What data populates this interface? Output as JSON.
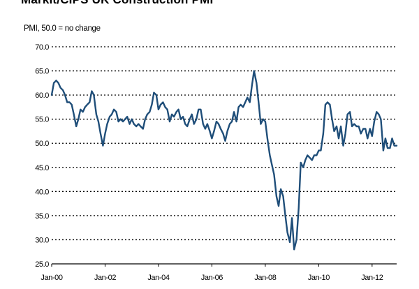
{
  "chart_data": {
    "type": "line",
    "title": "Markit/CIPS UK Construction PMI",
    "ylabel": "PMI, 50.0 = no change",
    "ylim": [
      25,
      70
    ],
    "y_ticks": [
      "25.0",
      "30.0",
      "35.0",
      "40.0",
      "45.0",
      "50.0",
      "55.0",
      "60.0",
      "65.0",
      "70.0"
    ],
    "x_ticks": [
      "Jan-00",
      "Jan-02",
      "Jan-04",
      "Jan-06",
      "Jan-08",
      "Jan-10",
      "Jan-12"
    ],
    "grid": true,
    "line_color": "#1f4e79",
    "series": [
      {
        "values": [
          [
            2000.0,
            60.0
          ],
          [
            2000.08,
            62.5
          ],
          [
            2000.17,
            63.0
          ],
          [
            2000.25,
            62.5
          ],
          [
            2000.33,
            61.5
          ],
          [
            2000.42,
            61.0
          ],
          [
            2000.5,
            60.0
          ],
          [
            2000.58,
            58.5
          ],
          [
            2000.67,
            58.5
          ],
          [
            2000.75,
            58.0
          ],
          [
            2000.83,
            56.0
          ],
          [
            2000.92,
            53.5
          ],
          [
            2001.0,
            55.0
          ],
          [
            2001.08,
            57.0
          ],
          [
            2001.17,
            56.5
          ],
          [
            2001.25,
            57.5
          ],
          [
            2001.33,
            58.0
          ],
          [
            2001.42,
            58.5
          ],
          [
            2001.5,
            60.8
          ],
          [
            2001.58,
            60.0
          ],
          [
            2001.67,
            56.0
          ],
          [
            2001.75,
            54.5
          ],
          [
            2001.83,
            52.0
          ],
          [
            2001.92,
            49.5
          ],
          [
            2002.0,
            52.0
          ],
          [
            2002.08,
            54.0
          ],
          [
            2002.17,
            55.5
          ],
          [
            2002.25,
            56.0
          ],
          [
            2002.33,
            57.0
          ],
          [
            2002.42,
            56.5
          ],
          [
            2002.5,
            54.5
          ],
          [
            2002.58,
            55.0
          ],
          [
            2002.67,
            54.5
          ],
          [
            2002.75,
            55.0
          ],
          [
            2002.83,
            55.5
          ],
          [
            2002.92,
            54.0
          ],
          [
            2003.0,
            55.0
          ],
          [
            2003.08,
            54.0
          ],
          [
            2003.17,
            53.5
          ],
          [
            2003.25,
            54.0
          ],
          [
            2003.33,
            53.5
          ],
          [
            2003.42,
            53.0
          ],
          [
            2003.5,
            55.0
          ],
          [
            2003.58,
            56.0
          ],
          [
            2003.67,
            56.5
          ],
          [
            2003.75,
            58.0
          ],
          [
            2003.83,
            60.5
          ],
          [
            2003.92,
            60.0
          ],
          [
            2004.0,
            57.0
          ],
          [
            2004.08,
            58.0
          ],
          [
            2004.17,
            58.5
          ],
          [
            2004.25,
            57.5
          ],
          [
            2004.33,
            57.0
          ],
          [
            2004.42,
            54.5
          ],
          [
            2004.5,
            56.0
          ],
          [
            2004.58,
            55.5
          ],
          [
            2004.67,
            56.5
          ],
          [
            2004.75,
            57.0
          ],
          [
            2004.83,
            55.0
          ],
          [
            2004.92,
            55.5
          ],
          [
            2005.0,
            54.0
          ],
          [
            2005.08,
            53.5
          ],
          [
            2005.17,
            55.0
          ],
          [
            2005.25,
            56.0
          ],
          [
            2005.33,
            54.0
          ],
          [
            2005.42,
            55.0
          ],
          [
            2005.5,
            57.0
          ],
          [
            2005.58,
            57.0
          ],
          [
            2005.67,
            54.0
          ],
          [
            2005.75,
            53.0
          ],
          [
            2005.83,
            54.0
          ],
          [
            2005.92,
            52.5
          ],
          [
            2006.0,
            51.0
          ],
          [
            2006.08,
            52.5
          ],
          [
            2006.17,
            54.5
          ],
          [
            2006.25,
            54.0
          ],
          [
            2006.33,
            53.0
          ],
          [
            2006.42,
            52.0
          ],
          [
            2006.5,
            50.5
          ],
          [
            2006.58,
            52.5
          ],
          [
            2006.67,
            54.0
          ],
          [
            2006.75,
            54.5
          ],
          [
            2006.83,
            56.5
          ],
          [
            2006.92,
            54.5
          ],
          [
            2007.0,
            57.5
          ],
          [
            2007.08,
            58.0
          ],
          [
            2007.17,
            57.5
          ],
          [
            2007.25,
            58.5
          ],
          [
            2007.33,
            59.5
          ],
          [
            2007.42,
            58.5
          ],
          [
            2007.5,
            62.0
          ],
          [
            2007.58,
            65.0
          ],
          [
            2007.67,
            62.5
          ],
          [
            2007.75,
            58.5
          ],
          [
            2007.83,
            54.0
          ],
          [
            2007.92,
            55.0
          ],
          [
            2008.0,
            54.5
          ],
          [
            2008.08,
            51.0
          ],
          [
            2008.17,
            47.5
          ],
          [
            2008.25,
            45.5
          ],
          [
            2008.33,
            43.5
          ],
          [
            2008.42,
            39.0
          ],
          [
            2008.5,
            37.0
          ],
          [
            2008.58,
            40.5
          ],
          [
            2008.67,
            39.0
          ],
          [
            2008.75,
            35.0
          ],
          [
            2008.83,
            31.5
          ],
          [
            2008.92,
            29.5
          ],
          [
            2009.0,
            34.5
          ],
          [
            2009.08,
            28.0
          ],
          [
            2009.17,
            30.0
          ],
          [
            2009.25,
            36.5
          ],
          [
            2009.33,
            46.0
          ],
          [
            2009.42,
            45.0
          ],
          [
            2009.5,
            46.5
          ],
          [
            2009.58,
            47.5
          ],
          [
            2009.67,
            47.0
          ],
          [
            2009.75,
            46.5
          ],
          [
            2009.83,
            47.5
          ],
          [
            2009.92,
            47.5
          ],
          [
            2010.0,
            48.5
          ],
          [
            2010.08,
            48.5
          ],
          [
            2010.17,
            52.0
          ],
          [
            2010.25,
            58.0
          ],
          [
            2010.33,
            58.5
          ],
          [
            2010.42,
            58.0
          ],
          [
            2010.5,
            55.0
          ],
          [
            2010.58,
            52.5
          ],
          [
            2010.67,
            53.5
          ],
          [
            2010.75,
            51.0
          ],
          [
            2010.83,
            53.5
          ],
          [
            2010.92,
            49.5
          ],
          [
            2011.0,
            52.0
          ],
          [
            2011.08,
            56.0
          ],
          [
            2011.17,
            56.5
          ],
          [
            2011.25,
            53.5
          ],
          [
            2011.33,
            54.0
          ],
          [
            2011.42,
            53.5
          ],
          [
            2011.5,
            53.5
          ],
          [
            2011.58,
            52.0
          ],
          [
            2011.67,
            53.0
          ],
          [
            2011.75,
            53.0
          ],
          [
            2011.83,
            51.0
          ],
          [
            2011.92,
            53.0
          ],
          [
            2012.0,
            51.5
          ],
          [
            2012.08,
            54.5
          ],
          [
            2012.17,
            56.5
          ],
          [
            2012.25,
            56.0
          ],
          [
            2012.33,
            55.0
          ],
          [
            2012.42,
            48.5
          ],
          [
            2012.5,
            51.0
          ],
          [
            2012.58,
            49.0
          ],
          [
            2012.67,
            49.0
          ],
          [
            2012.75,
            51.0
          ],
          [
            2012.83,
            49.5
          ],
          [
            2012.92,
            49.5
          ]
        ]
      }
    ]
  }
}
